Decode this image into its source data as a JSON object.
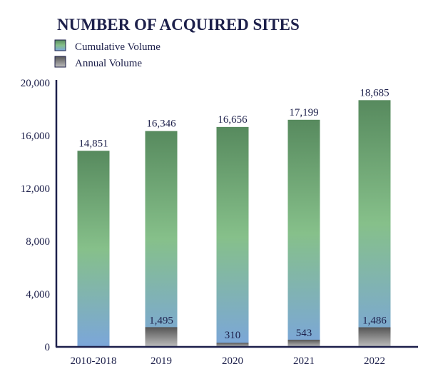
{
  "chart_data": {
    "type": "bar",
    "title": "NUMBER OF ACQUIRED SITES",
    "categories": [
      "2010-2018",
      "2019",
      "2020",
      "2021",
      "2022"
    ],
    "series": [
      {
        "name": "Cumulative Volume",
        "values": [
          14851,
          16346,
          16656,
          17199,
          18685
        ],
        "labels": [
          "14,851",
          "16,346",
          "16,656",
          "17,199",
          "18,685"
        ]
      },
      {
        "name": "Annual Volume",
        "values": [
          null,
          1495,
          310,
          543,
          1486
        ],
        "labels": [
          "",
          "1,495",
          "310",
          "543",
          "1,486"
        ]
      }
    ],
    "ylim": [
      0,
      20000
    ],
    "yticks": [
      0,
      4000,
      8000,
      12000,
      16000,
      20000
    ],
    "ytick_labels": [
      "0",
      "4,000",
      "8,000",
      "12,000",
      "16,000",
      "20,000"
    ],
    "xlabel": "",
    "ylabel": "",
    "grid": false,
    "legend_position": "top-left",
    "colors": {
      "cumulative_top": "#578a5e",
      "cumulative_mid": "#86c08a",
      "cumulative_bottom": "#7ba6da",
      "annual_top": "#555555",
      "annual_bottom": "#bdbdbd",
      "axis": "#1c1f4a",
      "text": "#1c1f4a"
    }
  }
}
